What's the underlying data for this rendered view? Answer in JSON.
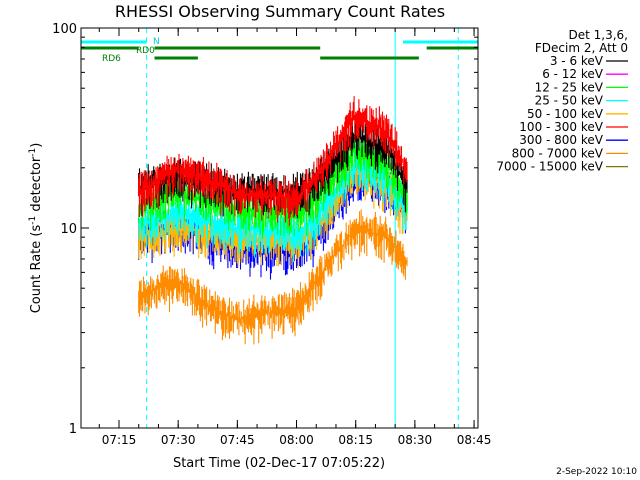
{
  "chart_data": {
    "type": "line",
    "title": "RHESSI Observing Summary Count Rates",
    "xlabel": "Start Time (02-Dec-17 07:05:22)",
    "ylabel_parts": [
      "Count Rate (s",
      "-1",
      " detector",
      "-1",
      ")"
    ],
    "y_scale": "log",
    "ylim": [
      1,
      100
    ],
    "xlim": [
      "07:05:22",
      "08:46:00"
    ],
    "x_ticks": [
      "07:15",
      "07:30",
      "07:45",
      "08:00",
      "08:15",
      "08:30",
      "08:45"
    ],
    "y_ticks": [
      "1",
      "10",
      "100"
    ],
    "grid": false,
    "legend_header": [
      "Det 1,3,6,",
      "FDecim 2, Att 0"
    ],
    "flag_labels": [
      "N",
      "RD0",
      "RD6"
    ],
    "flag_segments": {
      "N": [
        [
          "07:05:22",
          "07:22:00"
        ],
        [
          "08:27:00",
          "08:46:00"
        ]
      ],
      "RD0": [
        [
          "07:05:22",
          "07:20:00"
        ],
        [
          "07:24:00",
          "08:06:00"
        ],
        [
          "08:33:00",
          "08:46:00"
        ]
      ],
      "RD6": [
        [
          "07:24:00",
          "07:35:00"
        ],
        [
          "08:06:00",
          "08:31:00"
        ]
      ]
    },
    "night_lines": [
      "07:22:00",
      "08:41:00"
    ],
    "saa_lines": [
      "07:05:22",
      "08:25:00"
    ],
    "data_start": "07:20:00",
    "data_end": "08:29:00",
    "series": [
      {
        "name": "3 - 6 keV",
        "color": "#000000",
        "points": [
          [
            "07:20",
            16
          ],
          [
            "07:30",
            18
          ],
          [
            "07:45",
            15.5
          ],
          [
            "08:00",
            15
          ],
          [
            "08:05",
            17
          ],
          [
            "08:15",
            29
          ],
          [
            "08:23",
            25
          ],
          [
            "08:28",
            16
          ]
        ]
      },
      {
        "name": "6 - 12 keV",
        "color": "#ff00ff",
        "points": []
      },
      {
        "name": "12 - 25 keV",
        "color": "#00ff00",
        "points": [
          [
            "07:20",
            13
          ],
          [
            "07:30",
            15
          ],
          [
            "07:45",
            12.5
          ],
          [
            "08:00",
            12
          ],
          [
            "08:05",
            14
          ],
          [
            "08:15",
            25
          ],
          [
            "08:23",
            21
          ],
          [
            "08:28",
            14
          ]
        ]
      },
      {
        "name": "25 - 50 keV",
        "color": "#00ffff",
        "points": [
          [
            "07:20",
            10.5
          ],
          [
            "07:30",
            12
          ],
          [
            "07:45",
            10
          ],
          [
            "08:00",
            9.5
          ],
          [
            "08:05",
            11
          ],
          [
            "08:15",
            21
          ],
          [
            "08:23",
            18
          ],
          [
            "08:28",
            12
          ]
        ]
      },
      {
        "name": "50 - 100 keV",
        "color": "#ffb700",
        "points": [
          [
            "07:20",
            9
          ],
          [
            "07:30",
            10
          ],
          [
            "07:45",
            9
          ],
          [
            "08:00",
            8.5
          ],
          [
            "08:05",
            10
          ],
          [
            "08:15",
            19
          ],
          [
            "08:23",
            16
          ],
          [
            "08:28",
            11
          ]
        ]
      },
      {
        "name": "100 - 300 keV",
        "color": "#ff0000",
        "points": [
          [
            "07:20",
            15
          ],
          [
            "07:30",
            20
          ],
          [
            "07:45",
            15
          ],
          [
            "08:00",
            14
          ],
          [
            "08:05",
            18
          ],
          [
            "08:15",
            37
          ],
          [
            "08:23",
            30
          ],
          [
            "08:28",
            19
          ]
        ]
      },
      {
        "name": "300 - 800 keV",
        "color": "#0000ff",
        "points": [
          [
            "07:20",
            9
          ],
          [
            "07:30",
            10
          ],
          [
            "07:45",
            8
          ],
          [
            "08:00",
            7.5
          ],
          [
            "08:05",
            9
          ],
          [
            "08:15",
            18
          ],
          [
            "08:23",
            16
          ],
          [
            "08:28",
            12
          ]
        ]
      },
      {
        "name": "800 - 7000 keV",
        "color": "#ff8c00",
        "points": [
          [
            "07:20",
            4.5
          ],
          [
            "07:30",
            5.5
          ],
          [
            "07:38",
            4
          ],
          [
            "07:45",
            3.5
          ],
          [
            "08:00",
            4
          ],
          [
            "08:05",
            5.5
          ],
          [
            "08:15",
            10
          ],
          [
            "08:23",
            9
          ],
          [
            "08:28",
            6.5
          ]
        ]
      },
      {
        "name": "7000 - 15000 keV",
        "color": "#7a7a00",
        "points": []
      }
    ]
  },
  "footer_date": "2-Sep-2022 10:10"
}
